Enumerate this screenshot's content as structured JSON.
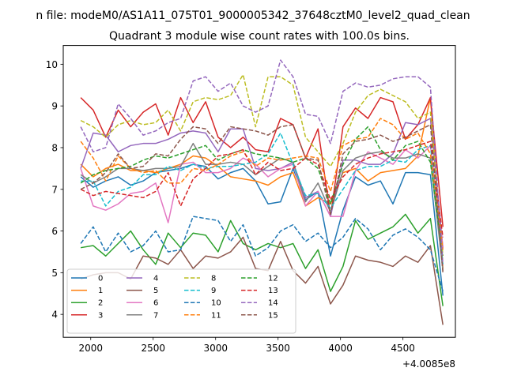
{
  "figure": {
    "suptitle": "n file: modeM0/AS1A11_075T01_9000005342_37648cztM0_level2_quad_clean",
    "title": "Quadrant 3 module wise count rates with 100.0s bins.",
    "x_offset_label": "+4.0085e8"
  },
  "chart_data": {
    "type": "line",
    "title": "Quadrant 3 module wise count rates with 100.0s bins.",
    "xlabel": "",
    "ylabel": "",
    "x_offset": 400850000,
    "xlim": [
      1780,
      4920
    ],
    "ylim": [
      3.45,
      10.45
    ],
    "xticks": [
      2000,
      2500,
      3000,
      3500,
      4000,
      4500
    ],
    "yticks": [
      4,
      5,
      6,
      7,
      8,
      9,
      10
    ],
    "grid": false,
    "legend": {
      "placement": "lower-left",
      "columns": 4
    },
    "x": [
      1920,
      2020,
      2120,
      2220,
      2320,
      2420,
      2520,
      2620,
      2720,
      2820,
      2920,
      3020,
      3120,
      3220,
      3320,
      3420,
      3520,
      3620,
      3720,
      3820,
      3920,
      4020,
      4120,
      4220,
      4320,
      4420,
      4520,
      4620,
      4720,
      4820
    ],
    "series": [
      {
        "name": "0",
        "color": "#1f77b4",
        "style": "solid",
        "values": [
          7.3,
          7.05,
          7.2,
          7.3,
          7.1,
          7.2,
          7.4,
          7.45,
          7.5,
          7.6,
          7.55,
          7.25,
          7.4,
          7.5,
          7.2,
          6.65,
          6.7,
          7.5,
          6.75,
          6.95,
          5.4,
          6.5,
          7.3,
          7.1,
          7.2,
          6.65,
          7.4,
          7.4,
          7.35,
          4.45
        ]
      },
      {
        "name": "1",
        "color": "#ff7f0e",
        "style": "solid",
        "values": [
          7.6,
          7.3,
          7.5,
          7.6,
          7.45,
          7.45,
          7.4,
          7.5,
          7.6,
          7.8,
          7.75,
          7.55,
          7.3,
          7.25,
          7.2,
          7.1,
          7.3,
          7.4,
          6.6,
          6.8,
          6.65,
          7.4,
          7.5,
          7.2,
          7.4,
          7.45,
          7.5,
          7.8,
          9.2,
          5.1
        ]
      },
      {
        "name": "2",
        "color": "#2ca02c",
        "style": "solid",
        "values": [
          5.6,
          5.65,
          5.4,
          5.7,
          6.0,
          5.55,
          5.2,
          5.95,
          5.6,
          5.95,
          5.9,
          5.5,
          6.25,
          5.7,
          5.55,
          5.7,
          5.6,
          5.7,
          5.1,
          5.55,
          4.55,
          5.15,
          6.25,
          5.8,
          5.95,
          6.1,
          6.4,
          5.95,
          6.3,
          4.2
        ]
      },
      {
        "name": "3",
        "color": "#d62728",
        "style": "solid",
        "values": [
          9.2,
          8.9,
          8.25,
          8.9,
          8.5,
          8.85,
          9.05,
          8.3,
          9.2,
          8.6,
          9.1,
          8.25,
          8.0,
          8.25,
          7.95,
          7.9,
          8.7,
          8.55,
          7.75,
          8.45,
          6.35,
          8.5,
          8.95,
          8.7,
          9.2,
          9.1,
          8.2,
          8.55,
          9.2,
          6.1
        ]
      },
      {
        "name": "4",
        "color": "#9467bd",
        "style": "solid",
        "values": [
          7.5,
          8.35,
          8.3,
          7.9,
          8.05,
          8.1,
          8.1,
          8.2,
          8.35,
          8.4,
          8.35,
          7.9,
          8.45,
          8.45,
          7.5,
          7.45,
          7.5,
          7.65,
          6.8,
          6.95,
          6.35,
          7.7,
          7.7,
          7.6,
          7.6,
          7.85,
          8.6,
          8.55,
          8.7,
          5.6
        ]
      },
      {
        "name": "5",
        "color": "#8c564b",
        "style": "solid",
        "values": [
          4.85,
          4.95,
          5.0,
          5.0,
          4.85,
          5.4,
          5.35,
          5.2,
          5.55,
          5.1,
          5.4,
          5.35,
          5.5,
          5.85,
          5.1,
          5.05,
          5.75,
          5.05,
          4.75,
          5.15,
          4.25,
          4.7,
          5.4,
          5.3,
          5.25,
          5.15,
          5.4,
          5.25,
          5.65,
          3.75
        ]
      },
      {
        "name": "6",
        "color": "#e377c2",
        "style": "solid",
        "values": [
          7.5,
          6.6,
          6.5,
          6.65,
          6.9,
          6.95,
          7.15,
          6.2,
          7.6,
          7.65,
          7.4,
          7.4,
          7.5,
          7.75,
          7.6,
          7.3,
          7.5,
          7.6,
          6.6,
          6.95,
          6.35,
          6.35,
          7.45,
          7.9,
          7.75,
          7.6,
          7.95,
          7.75,
          8.05,
          5.6
        ]
      },
      {
        "name": "7",
        "color": "#7f7f7f",
        "style": "solid",
        "values": [
          7.35,
          7.15,
          7.3,
          7.5,
          7.5,
          7.45,
          7.5,
          7.5,
          7.55,
          8.1,
          7.6,
          7.6,
          7.65,
          7.6,
          7.35,
          7.55,
          7.75,
          7.65,
          6.7,
          7.15,
          6.45,
          7.45,
          7.75,
          7.85,
          7.9,
          7.75,
          7.75,
          7.85,
          7.75,
          5.05
        ]
      },
      {
        "name": "8",
        "color": "#bcbd22",
        "style": "dashed",
        "values": [
          8.65,
          8.5,
          8.25,
          8.55,
          8.65,
          8.55,
          8.6,
          8.9,
          8.4,
          9.1,
          9.2,
          9.15,
          9.25,
          9.75,
          8.5,
          9.7,
          9.7,
          9.5,
          8.25,
          7.9,
          7.55,
          8.1,
          8.85,
          9.25,
          9.4,
          9.25,
          9.1,
          8.7,
          8.85,
          5.4
        ]
      },
      {
        "name": "9",
        "color": "#17becf",
        "style": "dashed",
        "values": [
          7.2,
          7.2,
          6.6,
          6.95,
          7.05,
          7.35,
          7.35,
          7.55,
          7.45,
          7.6,
          7.5,
          7.55,
          7.55,
          7.6,
          7.65,
          7.85,
          8.35,
          7.6,
          6.85,
          6.9,
          6.55,
          7.0,
          7.45,
          7.55,
          7.55,
          7.7,
          7.65,
          7.95,
          8.05,
          5.2
        ]
      },
      {
        "name": "10",
        "color": "#1f77b4",
        "style": "dashed",
        "values": [
          5.7,
          6.1,
          5.5,
          5.95,
          5.5,
          5.65,
          6.0,
          5.5,
          5.55,
          6.35,
          6.3,
          6.25,
          5.75,
          6.15,
          5.4,
          5.6,
          6.0,
          6.15,
          5.75,
          5.95,
          5.6,
          5.85,
          6.3,
          6.05,
          5.55,
          5.9,
          6.05,
          5.85,
          5.55,
          4.55
        ]
      },
      {
        "name": "11",
        "color": "#ff7f0e",
        "style": "dashed",
        "values": [
          8.15,
          7.75,
          7.2,
          7.8,
          7.5,
          7.4,
          7.45,
          7.15,
          7.15,
          7.5,
          7.45,
          7.6,
          7.8,
          7.9,
          7.55,
          7.75,
          7.7,
          7.75,
          7.8,
          7.75,
          6.95,
          8.05,
          8.2,
          8.25,
          8.7,
          8.55,
          8.2,
          8.35,
          7.85,
          5.55
        ]
      },
      {
        "name": "12",
        "color": "#2ca02c",
        "style": "dashed",
        "values": [
          7.15,
          7.35,
          7.45,
          7.5,
          7.55,
          7.7,
          7.8,
          7.75,
          7.85,
          7.95,
          8.05,
          7.7,
          7.85,
          7.95,
          7.85,
          7.8,
          7.75,
          7.65,
          7.75,
          7.5,
          6.65,
          7.6,
          8.2,
          8.5,
          7.95,
          7.7,
          8.05,
          8.15,
          7.65,
          5.35
        ]
      },
      {
        "name": "13",
        "color": "#d62728",
        "style": "dashed",
        "values": [
          7.0,
          6.85,
          6.95,
          6.9,
          6.85,
          6.8,
          6.95,
          7.4,
          6.6,
          7.25,
          7.5,
          7.8,
          7.85,
          7.95,
          7.35,
          7.65,
          7.45,
          7.5,
          7.75,
          7.6,
          6.75,
          7.3,
          7.6,
          7.75,
          7.85,
          7.9,
          7.95,
          8.05,
          8.15,
          5.85
        ]
      },
      {
        "name": "14",
        "color": "#9467bd",
        "style": "dashed",
        "values": [
          8.5,
          7.9,
          8.0,
          9.05,
          8.7,
          8.3,
          8.4,
          8.6,
          8.7,
          9.6,
          9.7,
          9.35,
          9.55,
          9.0,
          8.85,
          9.0,
          10.1,
          9.7,
          8.8,
          8.75,
          8.1,
          9.35,
          9.55,
          9.45,
          9.5,
          9.65,
          9.7,
          9.7,
          9.45,
          5.2
        ]
      },
      {
        "name": "15",
        "color": "#8c564b",
        "style": "dashed",
        "values": [
          7.0,
          7.15,
          7.4,
          7.85,
          7.5,
          7.55,
          7.85,
          7.8,
          8.2,
          8.5,
          8.45,
          8.1,
          8.5,
          8.45,
          8.4,
          8.3,
          8.5,
          8.55,
          7.75,
          7.7,
          6.4,
          7.85,
          8.15,
          8.2,
          8.3,
          8.15,
          8.25,
          8.4,
          8.55,
          5.0
        ]
      }
    ]
  }
}
